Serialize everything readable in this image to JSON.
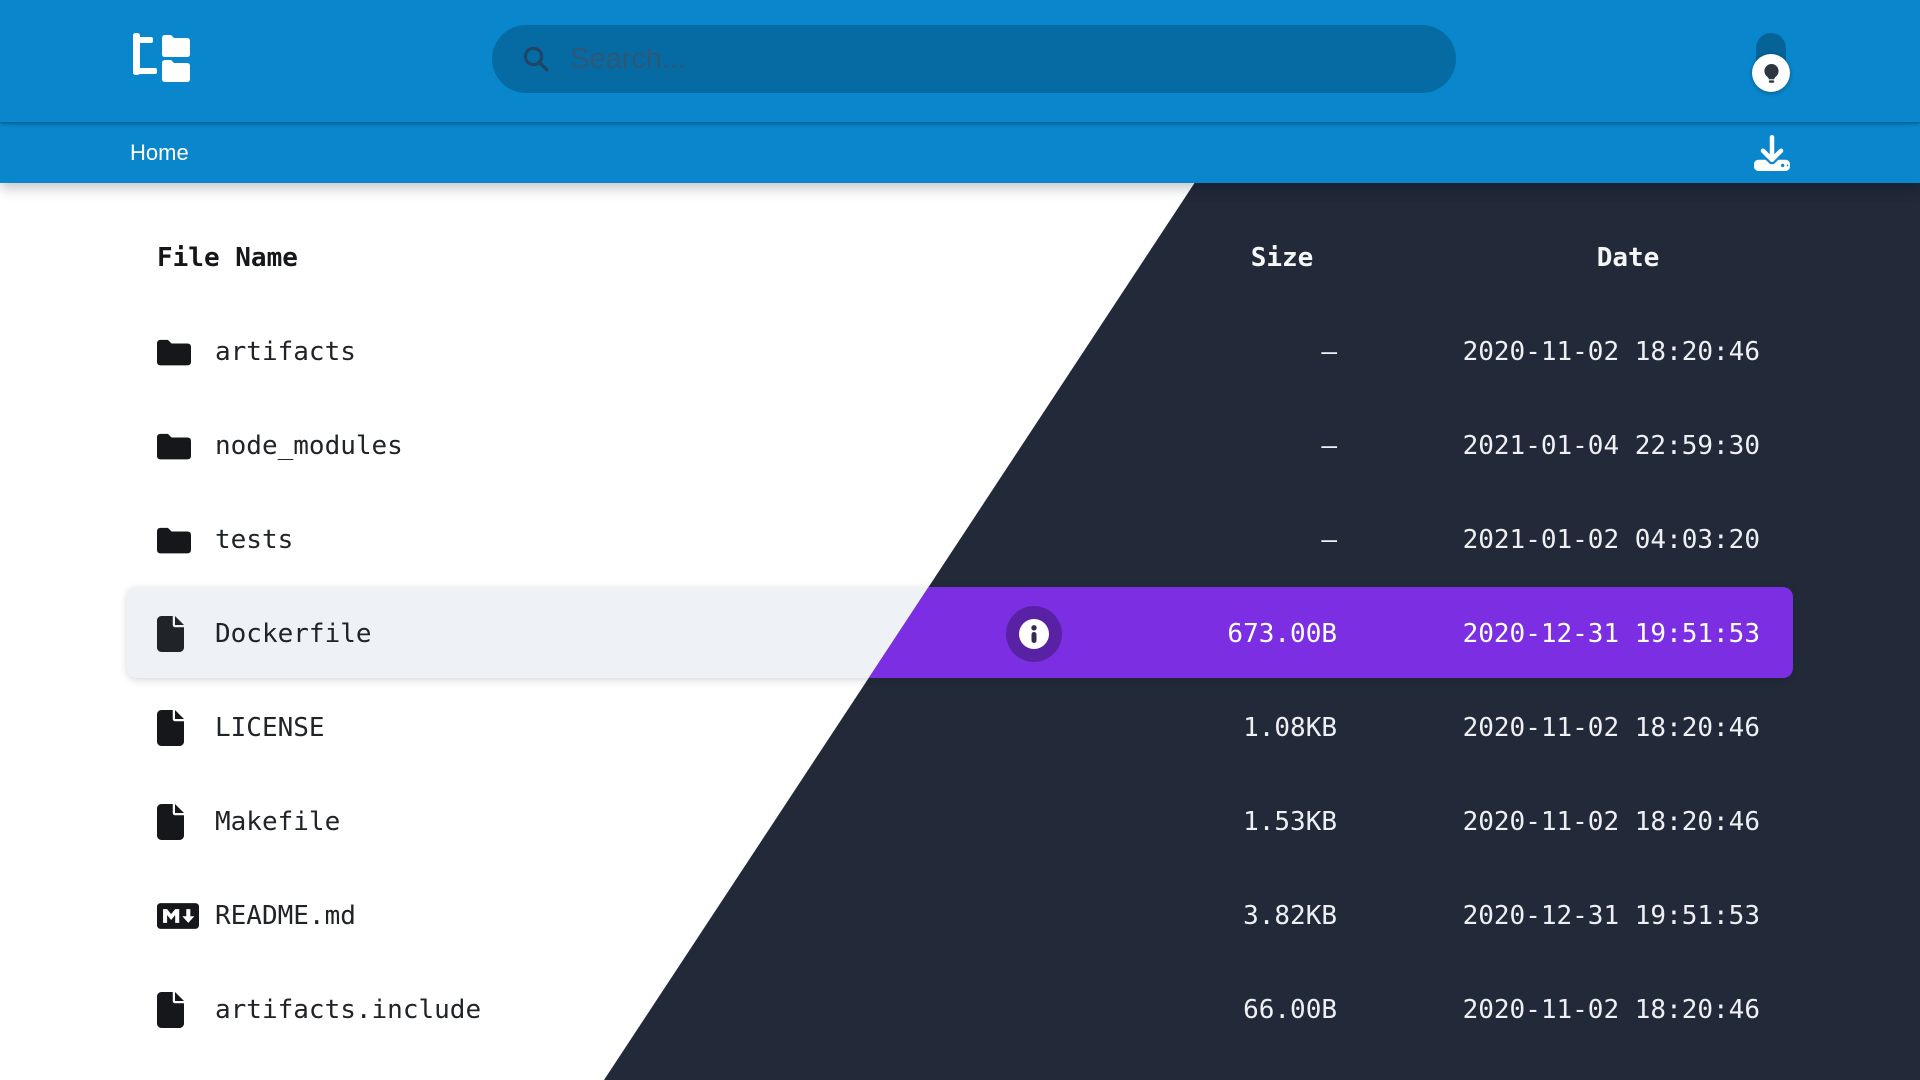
{
  "header": {
    "logo_icon": "folder-tree-icon",
    "search": {
      "placeholder": "Search...",
      "value": "",
      "icon": "search-icon"
    },
    "theme_toggle": {
      "icon": "lightbulb-icon"
    }
  },
  "breadcrumb": {
    "path_label": "Home",
    "download_icon": "download-icon"
  },
  "colors": {
    "light_bar_blue": "#0986cc",
    "dark_bar_purple": "#7129d6",
    "dark_background": "#222a3a",
    "selected_row_purple": "#7c2fe2",
    "selected_row_light_gray": "#eef1f5"
  },
  "table": {
    "headers": {
      "name": "File Name",
      "size": "Size",
      "date": "Date"
    },
    "rows": [
      {
        "icon": "folder",
        "name": "artifacts",
        "size": "—",
        "date": "2020-11-02 18:20:46",
        "selected": false
      },
      {
        "icon": "folder",
        "name": "node_modules",
        "size": "—",
        "date": "2021-01-04 22:59:30",
        "selected": false
      },
      {
        "icon": "folder",
        "name": "tests",
        "size": "—",
        "date": "2021-01-02 04:03:20",
        "selected": false
      },
      {
        "icon": "file",
        "name": "Dockerfile",
        "size": "673.00B",
        "date": "2020-12-31 19:51:53",
        "selected": true
      },
      {
        "icon": "file",
        "name": "LICENSE",
        "size": "1.08KB",
        "date": "2020-11-02 18:20:46",
        "selected": false
      },
      {
        "icon": "file",
        "name": "Makefile",
        "size": "1.53KB",
        "date": "2020-11-02 18:20:46",
        "selected": false
      },
      {
        "icon": "markdown",
        "name": "README.md",
        "size": "3.82KB",
        "date": "2020-12-31 19:51:53",
        "selected": false
      },
      {
        "icon": "file",
        "name": "artifacts.include",
        "size": "66.00B",
        "date": "2020-11-02 18:20:46",
        "selected": false
      }
    ]
  }
}
